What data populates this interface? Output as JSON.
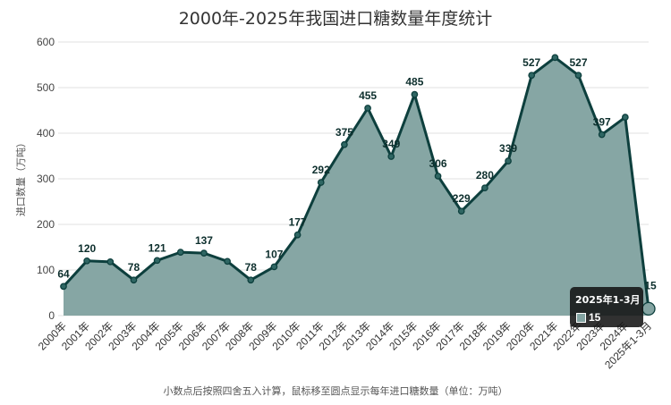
{
  "chart_data": {
    "type": "area",
    "title": "2000年-2025年我国进口糖数量年度统计",
    "ylabel": "进口数量（万吨）",
    "xlabel": "",
    "ylim": [
      0,
      600
    ],
    "yticks": [
      0,
      100,
      200,
      300,
      400,
      500,
      600
    ],
    "grid": true,
    "categories": [
      "2000年",
      "2001年",
      "2002年",
      "2003年",
      "2004年",
      "2005年",
      "2006年",
      "2007年",
      "2008年",
      "2009年",
      "2010年",
      "2011年",
      "2012年",
      "2013年",
      "2014年",
      "2015年",
      "2016年",
      "2017年",
      "2018年",
      "2019年",
      "2020年",
      "2021年",
      "2022年",
      "2023年",
      "2024年",
      "2025年1-3月"
    ],
    "values": [
      64,
      120,
      118,
      78,
      121,
      139,
      137,
      119,
      78,
      107,
      177,
      292,
      375,
      455,
      349,
      485,
      306,
      229,
      280,
      339,
      527,
      566,
      527,
      397,
      435,
      15
    ],
    "labeled": [
      true,
      true,
      false,
      true,
      true,
      false,
      true,
      false,
      true,
      true,
      true,
      true,
      true,
      true,
      true,
      true,
      true,
      true,
      true,
      true,
      true,
      false,
      true,
      true,
      false,
      true
    ],
    "colors": {
      "fill": "#84a4a2",
      "line": "#0d3f3d",
      "grid": "#e0e0e0"
    },
    "footnote": "小数点后按照四舍五入计算，鼠标移至圆点显示每年进口糖数量（单位：万吨）",
    "tooltip": {
      "title": "2025年1-3月",
      "value": "15"
    }
  }
}
